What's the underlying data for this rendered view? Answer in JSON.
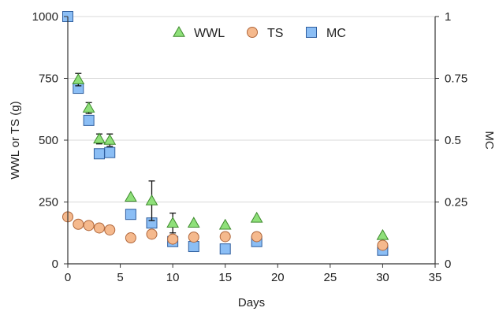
{
  "chart_data": {
    "type": "scatter",
    "title": "",
    "xlabel": "Days",
    "ylabel": "WWL or TS (g)",
    "y2label": "MC",
    "xlim": [
      0,
      35
    ],
    "ylim": [
      0,
      1000
    ],
    "y2lim": [
      0,
      1
    ],
    "x_ticks": [
      "0",
      "5",
      "10",
      "15",
      "20",
      "25",
      "30",
      "35"
    ],
    "y_ticks": [
      "0",
      "250",
      "500",
      "750",
      "1000"
    ],
    "y2_ticks": [
      "0",
      "0.25",
      "0.5",
      "0.75",
      "1"
    ],
    "grid": "horizontal",
    "legend_position": "top",
    "series": [
      {
        "name": "WWL",
        "axis": "left",
        "marker": "triangle",
        "color": "#8fe07a",
        "x": [
          1,
          2,
          3,
          4,
          6,
          8,
          10,
          12,
          15,
          18,
          30
        ],
        "y": [
          745,
          630,
          505,
          500,
          270,
          255,
          165,
          165,
          157,
          185,
          115
        ],
        "error": [
          25,
          22,
          20,
          25,
          0,
          80,
          40,
          0,
          0,
          0,
          0
        ]
      },
      {
        "name": "TS",
        "axis": "left",
        "marker": "circle",
        "color": "#f5b98d",
        "x": [
          0,
          1,
          2,
          3,
          4,
          6,
          8,
          10,
          12,
          15,
          18,
          30
        ],
        "y": [
          190,
          160,
          155,
          145,
          137,
          105,
          120,
          100,
          108,
          110,
          110,
          75
        ],
        "error": [
          0,
          0,
          0,
          0,
          0,
          0,
          15,
          0,
          0,
          0,
          0,
          0
        ]
      },
      {
        "name": "MC",
        "axis": "right",
        "marker": "square",
        "color": "#8bbef5",
        "x": [
          0,
          1,
          2,
          3,
          4,
          6,
          8,
          10,
          12,
          15,
          18,
          30
        ],
        "y": [
          1.0,
          0.71,
          0.58,
          0.445,
          0.45,
          0.2,
          0.165,
          0.09,
          0.07,
          0.06,
          0.09,
          0.055
        ],
        "error": [
          0,
          0,
          0,
          0,
          0,
          0,
          0,
          0,
          0,
          0,
          0,
          0
        ]
      }
    ]
  }
}
